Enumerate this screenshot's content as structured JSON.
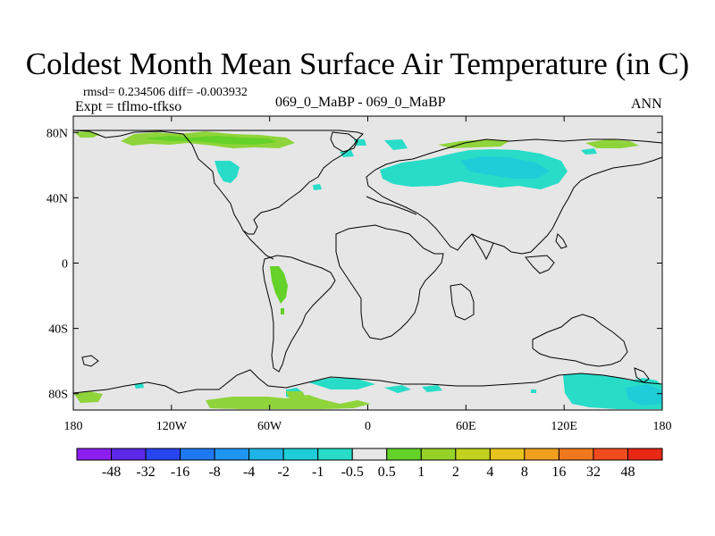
{
  "title": "Coldest Month Mean Surface Air Temperature (in C)",
  "stats": {
    "rmsd_label": "rmsd= 0.234506 diff= -0.003932"
  },
  "experiment": "Expt = tflmo-tfkso",
  "case_label": "069_0_MaBP - 069_0_MaBP",
  "season": "ANN",
  "map": {
    "lon_ticks": [
      "180",
      "120W",
      "60W",
      "0",
      "60E",
      "120E",
      "180"
    ],
    "lat_ticks": [
      "80N",
      "40N",
      "0",
      "40S",
      "80S"
    ],
    "background_color": "#e6e6e6"
  },
  "colorbar": {
    "labels": [
      "-48",
      "-32",
      "-16",
      "-8",
      "-4",
      "-2",
      "-1",
      "-0.5",
      "0.5",
      "1",
      "2",
      "4",
      "8",
      "16",
      "32",
      "48"
    ],
    "colors": [
      "#8c1ff0",
      "#5a28e6",
      "#2846f0",
      "#1e78f0",
      "#1e96f0",
      "#1eb4e6",
      "#1ecdd7",
      "#28dcc8",
      "#e6e6e6",
      "#64d228",
      "#96d228",
      "#c3d21e",
      "#e6c31e",
      "#f0a01e",
      "#f0781e",
      "#f04b1e",
      "#e62814"
    ]
  }
}
